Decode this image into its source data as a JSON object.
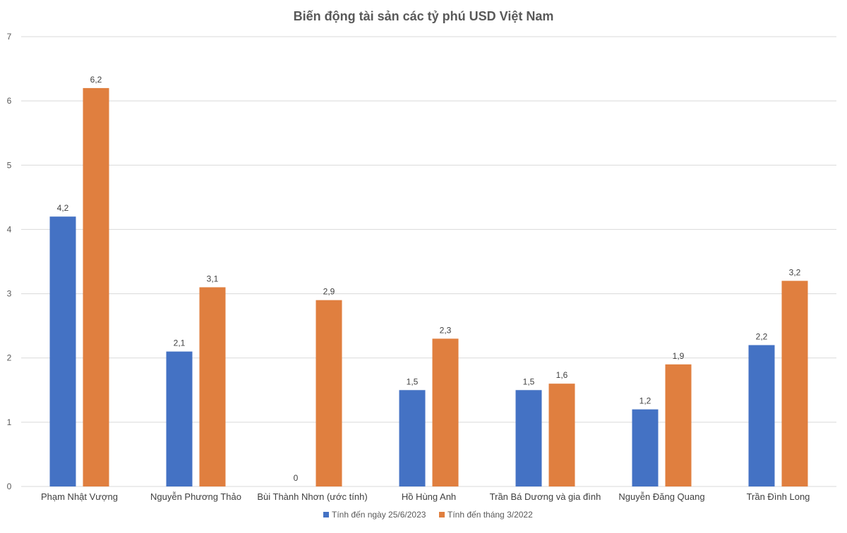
{
  "chart_data": {
    "type": "bar",
    "title": "Biến động tài sản các tỷ phú USD Việt Nam",
    "xlabel": "",
    "ylabel": "",
    "ylim": [
      0,
      7
    ],
    "yticks": [
      "0",
      "1",
      "2",
      "3",
      "4",
      "5",
      "6",
      "7"
    ],
    "grid": true,
    "legend_position": "bottom",
    "categories": [
      "Phạm Nhật Vượng",
      "Nguyễn Phương Thảo",
      "Bùi Thành Nhơn (ước tính)",
      "Hồ Hùng Anh",
      "Trần Bá Dương và gia đình",
      "Nguyễn Đăng Quang",
      "Trần Đình Long"
    ],
    "series": [
      {
        "name": "Tính đến ngày 25/6/2023",
        "color": "#4472c4",
        "values": [
          4.2,
          2.1,
          0,
          1.5,
          1.5,
          1.2,
          2.2
        ],
        "labels": [
          "4,2",
          "2,1",
          "0",
          "1,5",
          "1,5",
          "1,2",
          "2,2"
        ]
      },
      {
        "name": "Tính đến tháng 3/2022",
        "color": "#e07f3f",
        "values": [
          6.2,
          3.1,
          2.9,
          2.3,
          1.6,
          1.9,
          3.2
        ],
        "labels": [
          "6,2",
          "3,1",
          "2,9",
          "2,3",
          "1,6",
          "1,9",
          "3,2"
        ]
      }
    ]
  }
}
